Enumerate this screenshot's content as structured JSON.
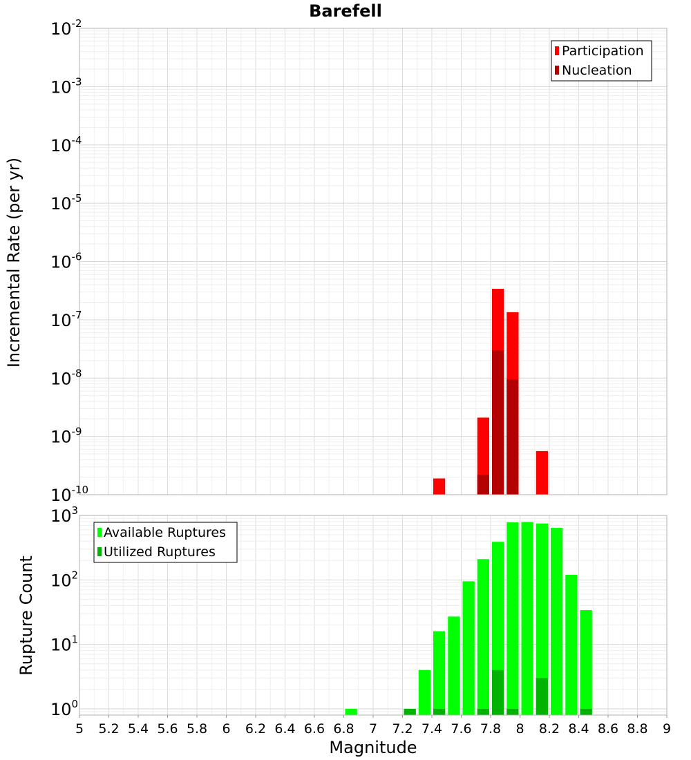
{
  "chart_data": [
    {
      "type": "bar",
      "title": "Barefell",
      "xlabel": "Magnitude",
      "ylabel": "Incremental Rate (per yr)",
      "xlim": [
        5,
        9
      ],
      "ylim": [
        1e-10,
        0.01
      ],
      "yscale": "log",
      "grid": true,
      "legend_position": "top-right",
      "bin_width": 0.1,
      "x_ticks": [
        "5",
        "5.2",
        "5.4",
        "5.6",
        "5.8",
        "6",
        "6.2",
        "6.4",
        "6.6",
        "6.8",
        "7",
        "7.2",
        "7.4",
        "7.6",
        "7.8",
        "8",
        "8.2",
        "8.4",
        "8.6",
        "8.8",
        "9"
      ],
      "y_ticks": [
        {
          "value": 1e-10,
          "base": "10",
          "exp": "-10"
        },
        {
          "value": 1e-09,
          "base": "10",
          "exp": "-9"
        },
        {
          "value": 1e-08,
          "base": "10",
          "exp": "-8"
        },
        {
          "value": 1e-07,
          "base": "10",
          "exp": "-7"
        },
        {
          "value": 1e-06,
          "base": "10",
          "exp": "-6"
        },
        {
          "value": 1e-05,
          "base": "10",
          "exp": "-5"
        },
        {
          "value": 0.0001,
          "base": "10",
          "exp": "-4"
        },
        {
          "value": 0.001,
          "base": "10",
          "exp": "-3"
        },
        {
          "value": 0.01,
          "base": "10",
          "exp": "-2"
        }
      ],
      "series": [
        {
          "name": "Participation",
          "color": "#ff0000",
          "x": [
            7.45,
            7.75,
            7.85,
            7.95,
            8.15
          ],
          "values": [
            1.9e-10,
            2.1e-09,
            3.4e-07,
            1.35e-07,
            5.6e-10
          ]
        },
        {
          "name": "Nucleation",
          "color": "#b30000",
          "x": [
            7.75,
            7.85,
            7.95
          ],
          "values": [
            2.2e-10,
            3e-08,
            9.5e-09
          ]
        }
      ]
    },
    {
      "type": "bar",
      "xlabel": "Magnitude",
      "ylabel": "Rupture Count",
      "xlim": [
        5,
        9
      ],
      "ylim": [
        0.8,
        1000
      ],
      "yscale": "log",
      "grid": true,
      "legend_position": "top-left",
      "bin_width": 0.1,
      "y_ticks": [
        {
          "value": 1,
          "base": "10",
          "exp": "0"
        },
        {
          "value": 10,
          "base": "10",
          "exp": "1"
        },
        {
          "value": 100,
          "base": "10",
          "exp": "2"
        },
        {
          "value": 1000,
          "base": "10",
          "exp": "3"
        }
      ],
      "series": [
        {
          "name": "Available Ruptures",
          "color": "#00ff00",
          "x": [
            6.85,
            7.25,
            7.35,
            7.45,
            7.55,
            7.65,
            7.75,
            7.85,
            7.95,
            8.05,
            8.15,
            8.25,
            8.35,
            8.45
          ],
          "values": [
            1,
            1,
            4,
            16,
            27,
            95,
            210,
            390,
            780,
            790,
            750,
            640,
            120,
            34
          ]
        },
        {
          "name": "Utilized Ruptures",
          "color": "#00b300",
          "x": [
            7.25,
            7.45,
            7.75,
            7.85,
            7.95,
            8.15,
            8.45
          ],
          "values": [
            1,
            1,
            1,
            4,
            1,
            3,
            1
          ]
        }
      ]
    }
  ]
}
